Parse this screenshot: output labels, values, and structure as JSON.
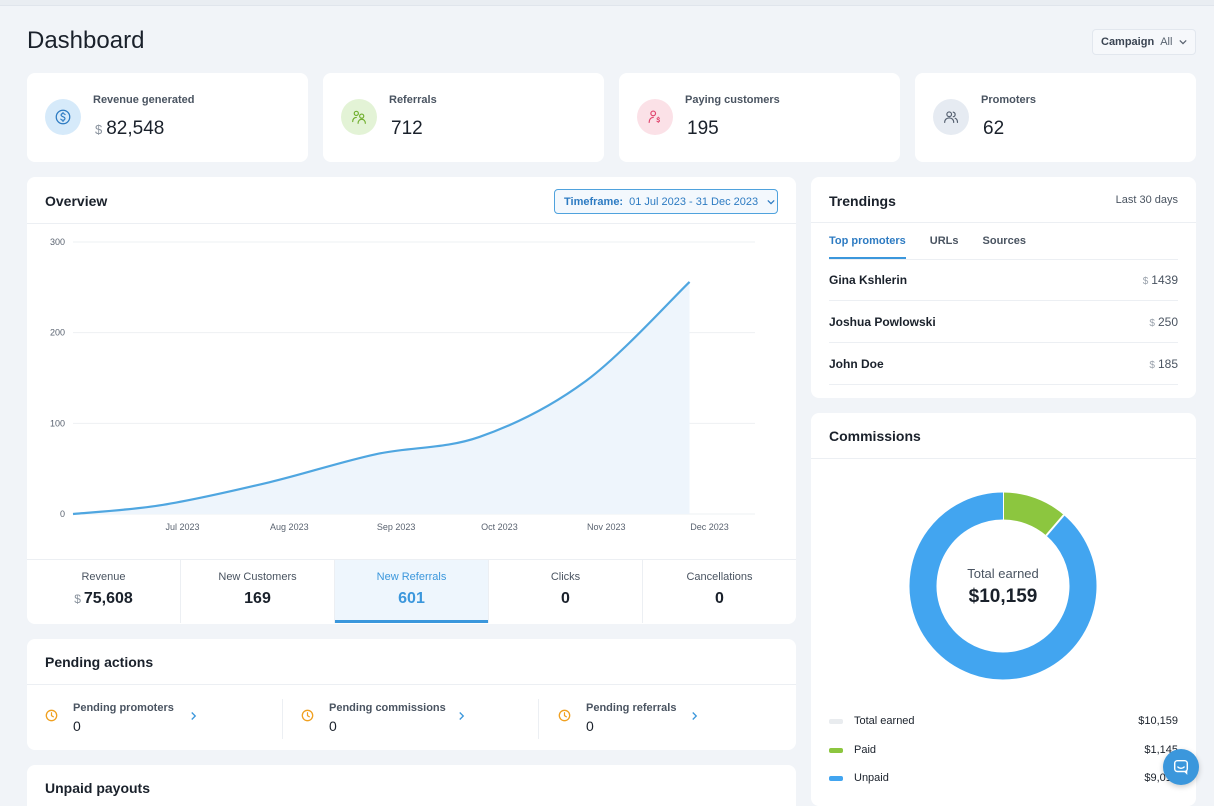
{
  "header": {
    "title": "Dashboard",
    "campaign_label": "Campaign",
    "campaign_value": "All"
  },
  "stats": [
    {
      "label": "Revenue generated",
      "currency": "$",
      "value": "82,548",
      "icon": "dollar-coin-icon"
    },
    {
      "label": "Referrals",
      "currency": "",
      "value": "712",
      "icon": "people-link-icon"
    },
    {
      "label": "Paying customers",
      "currency": "",
      "value": "195",
      "icon": "user-dollar-icon"
    },
    {
      "label": "Promoters",
      "currency": "",
      "value": "62",
      "icon": "users-icon"
    }
  ],
  "overview": {
    "title": "Overview",
    "timeframe_label": "Timeframe:",
    "timeframe_value": "01 Jul 2023 - 31 Dec 2023",
    "metrics": [
      {
        "label": "Revenue",
        "currency": "$",
        "value": "75,608",
        "active": false
      },
      {
        "label": "New Customers",
        "currency": "",
        "value": "169",
        "active": false
      },
      {
        "label": "New Referrals",
        "currency": "",
        "value": "601",
        "active": true
      },
      {
        "label": "Clicks",
        "currency": "",
        "value": "0",
        "active": false
      },
      {
        "label": "Cancellations",
        "currency": "",
        "value": "0",
        "active": false
      }
    ]
  },
  "chart_data": {
    "type": "area",
    "title": "",
    "xlabel": "",
    "ylabel": "",
    "x_ticks": [
      "Jul 2023",
      "Aug 2023",
      "Sep 2023",
      "Oct 2023",
      "Nov 2023",
      "Dec 2023"
    ],
    "y_ticks": [
      0,
      100,
      200,
      300
    ],
    "ylim": [
      0,
      300
    ],
    "grid": true,
    "color": "#4fa6e0",
    "series": [
      {
        "x": [
          "2023-06-05",
          "2023-07-01",
          "2023-08-01",
          "2023-09-01",
          "2023-10-01",
          "2023-11-01",
          "2023-12-01"
        ],
        "values": [
          0,
          10,
          35,
          66,
          85,
          147,
          256
        ]
      }
    ]
  },
  "pending": {
    "title": "Pending actions",
    "items": [
      {
        "label": "Pending promoters",
        "value": "0"
      },
      {
        "label": "Pending commissions",
        "value": "0"
      },
      {
        "label": "Pending referrals",
        "value": "0"
      }
    ]
  },
  "unpaid": {
    "title": "Unpaid payouts"
  },
  "trendings": {
    "title": "Trendings",
    "period": "Last 30 days",
    "tabs": [
      "Top promoters",
      "URLs",
      "Sources"
    ],
    "rows": [
      {
        "name": "Gina Kshlerin",
        "currency": "$",
        "amount": "1439"
      },
      {
        "name": "Joshua Powlowski",
        "currency": "$",
        "amount": "250"
      },
      {
        "name": "John Doe",
        "currency": "$",
        "amount": "185"
      }
    ]
  },
  "commissions": {
    "title": "Commissions",
    "center_label": "Total earned",
    "center_value": "$10,159",
    "donut": [
      {
        "name": "Paid",
        "value": 1145,
        "color": "#8cc63f"
      },
      {
        "name": "Unpaid",
        "value": 9014,
        "color": "#42a5f0"
      }
    ],
    "legend": [
      {
        "name": "Total earned",
        "value": "$10,159",
        "color": "#e9ecef"
      },
      {
        "name": "Paid",
        "value": "$1,145",
        "color": "#8cc63f"
      },
      {
        "name": "Unpaid",
        "value": "$9,014",
        "color": "#42a5f0"
      }
    ]
  }
}
